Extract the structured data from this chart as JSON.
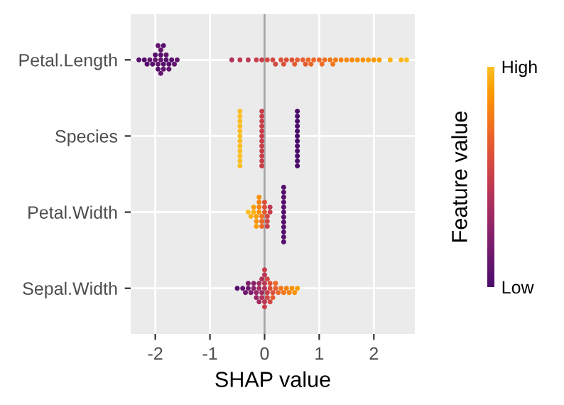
{
  "chart_data": {
    "type": "scatter",
    "orientation": "horizontal",
    "xlabel": "SHAP value",
    "clabel": "Feature value",
    "categories": [
      "Petal.Length",
      "Species",
      "Petal.Width",
      "Sepal.Width"
    ],
    "xlim": [
      -2.45,
      2.75
    ],
    "xticks": [
      {
        "value": -2,
        "label": "-2"
      },
      {
        "value": -1,
        "label": "-1"
      },
      0,
      1,
      2
    ],
    "grid": true,
    "marker": "circle",
    "legend": false,
    "clim": [
      0,
      1
    ],
    "cticks": [
      {
        "value": 0,
        "label": "Low"
      },
      {
        "value": 1,
        "label": "High"
      }
    ],
    "ref_lines": [
      {
        "axis": "x",
        "value": 0,
        "color": "#a6a6a6"
      }
    ],
    "series": [
      {
        "x": [
          "Petal.Length",
          "Petal.Length",
          "Petal.Length",
          "Petal.Length",
          "Petal.Length",
          "Petal.Length",
          "Petal.Length",
          "Petal.Length",
          "Petal.Length",
          "Petal.Length",
          "Petal.Length",
          "Petal.Length",
          "Petal.Length",
          "Petal.Length",
          "Petal.Length",
          "Petal.Length",
          "Petal.Length",
          "Petal.Length",
          "Petal.Length",
          "Petal.Length",
          "Petal.Length",
          "Petal.Length",
          "Petal.Length",
          "Petal.Length",
          "Petal.Length",
          "Petal.Length",
          "Petal.Length",
          "Petal.Length",
          "Petal.Length",
          "Petal.Length",
          "Petal.Length",
          "Petal.Length",
          "Petal.Length",
          "Petal.Length",
          "Petal.Length",
          "Petal.Length",
          "Petal.Length",
          "Petal.Length",
          "Petal.Length",
          "Petal.Length",
          "Petal.Length",
          "Petal.Length",
          "Petal.Length",
          "Petal.Length",
          "Petal.Length",
          "Petal.Length",
          "Petal.Length",
          "Petal.Length",
          "Petal.Length",
          "Petal.Length",
          "Petal.Length",
          "Petal.Length",
          "Petal.Length",
          "Petal.Length",
          "Petal.Length",
          "Petal.Length",
          "Petal.Length",
          "Petal.Length",
          "Petal.Length",
          "Petal.Length",
          "Species",
          "Species",
          "Species",
          "Species",
          "Species",
          "Species",
          "Species",
          "Species",
          "Species",
          "Species",
          "Species",
          "Species",
          "Species",
          "Species",
          "Species",
          "Species",
          "Species",
          "Species",
          "Species",
          "Species",
          "Species",
          "Species",
          "Species",
          "Species",
          "Species",
          "Species",
          "Species",
          "Species",
          "Species",
          "Species",
          "Species",
          "Species",
          "Species",
          "Species",
          "Species",
          "Species",
          "Petal.Width",
          "Petal.Width",
          "Petal.Width",
          "Petal.Width",
          "Petal.Width",
          "Petal.Width",
          "Petal.Width",
          "Petal.Width",
          "Petal.Width",
          "Petal.Width",
          "Petal.Width",
          "Petal.Width",
          "Petal.Width",
          "Petal.Width",
          "Petal.Width",
          "Petal.Width",
          "Petal.Width",
          "Petal.Width",
          "Petal.Width",
          "Petal.Width",
          "Petal.Width",
          "Petal.Width",
          "Petal.Width",
          "Petal.Width",
          "Petal.Width",
          "Petal.Width",
          "Petal.Width",
          "Petal.Width",
          "Petal.Width",
          "Petal.Width",
          "Petal.Width",
          "Petal.Width",
          "Petal.Width",
          "Petal.Width",
          "Sepal.Width",
          "Sepal.Width",
          "Sepal.Width",
          "Sepal.Width",
          "Sepal.Width",
          "Sepal.Width",
          "Sepal.Width",
          "Sepal.Width",
          "Sepal.Width",
          "Sepal.Width",
          "Sepal.Width",
          "Sepal.Width",
          "Sepal.Width",
          "Sepal.Width",
          "Sepal.Width",
          "Sepal.Width",
          "Sepal.Width",
          "Sepal.Width",
          "Sepal.Width",
          "Sepal.Width",
          "Sepal.Width",
          "Sepal.Width",
          "Sepal.Width",
          "Sepal.Width",
          "Sepal.Width",
          "Sepal.Width",
          "Sepal.Width",
          "Sepal.Width",
          "Sepal.Width",
          "Sepal.Width",
          "Sepal.Width",
          "Sepal.Width",
          "Sepal.Width",
          "Sepal.Width",
          "Sepal.Width",
          "Sepal.Width",
          "Sepal.Width",
          "Sepal.Width",
          "Sepal.Width",
          "Sepal.Width"
        ],
        "values": [
          -2.3,
          -2.2,
          -2.1,
          -2.05,
          -2.0,
          -2.0,
          -1.95,
          -1.95,
          -1.9,
          -1.9,
          -1.9,
          -1.85,
          -1.85,
          -1.8,
          -1.8,
          -1.75,
          -1.75,
          -1.7,
          -1.65,
          -1.6,
          -2.15,
          -1.9,
          -1.85,
          -1.95,
          -0.6,
          -0.45,
          -0.3,
          -0.15,
          -0.05,
          0.05,
          0.15,
          0.2,
          0.3,
          0.35,
          0.4,
          0.5,
          0.55,
          0.6,
          0.7,
          0.75,
          0.8,
          0.85,
          0.9,
          1.0,
          1.05,
          1.1,
          1.2,
          1.25,
          1.3,
          1.4,
          1.5,
          1.6,
          1.7,
          1.8,
          1.9,
          2.0,
          2.1,
          2.3,
          2.5,
          2.6,
          -0.45,
          -0.45,
          -0.45,
          -0.45,
          -0.45,
          -0.45,
          -0.45,
          -0.45,
          -0.45,
          -0.45,
          -0.45,
          -0.45,
          -0.05,
          -0.05,
          -0.05,
          -0.05,
          -0.05,
          -0.05,
          -0.05,
          -0.05,
          -0.05,
          -0.05,
          -0.05,
          -0.05,
          0.6,
          0.6,
          0.6,
          0.6,
          0.6,
          0.6,
          0.6,
          0.6,
          0.6,
          0.6,
          0.6,
          0.6,
          0.35,
          0.35,
          0.35,
          0.35,
          0.35,
          0.35,
          0.35,
          0.35,
          0.35,
          0.35,
          0.35,
          0.35,
          -0.3,
          -0.25,
          -0.2,
          -0.2,
          -0.15,
          -0.15,
          -0.1,
          -0.1,
          -0.1,
          -0.05,
          -0.05,
          -0.05,
          0.0,
          0.0,
          0.0,
          0.05,
          0.05,
          0.05,
          0.1,
          0.1,
          -0.15,
          -0.1,
          -0.5,
          -0.4,
          -0.35,
          -0.3,
          -0.3,
          -0.25,
          -0.2,
          -0.2,
          -0.15,
          -0.15,
          -0.1,
          -0.1,
          -0.05,
          -0.05,
          -0.05,
          0.0,
          0.0,
          0.0,
          0.0,
          0.0,
          0.0,
          0.05,
          0.05,
          0.05,
          0.1,
          0.1,
          0.15,
          0.15,
          0.2,
          0.2,
          0.25,
          0.3,
          0.35,
          0.4,
          0.45,
          0.5,
          0.55,
          0.6,
          -0.1,
          0.1
        ],
        "cvalues": [
          0.05,
          0.05,
          0.1,
          0.05,
          0.1,
          0.05,
          0.1,
          0.05,
          0.1,
          0.05,
          0.1,
          0.05,
          0.1,
          0.05,
          0.1,
          0.05,
          0.1,
          0.05,
          0.1,
          0.1,
          0.05,
          0.1,
          0.05,
          0.1,
          0.4,
          0.45,
          0.45,
          0.5,
          0.5,
          0.55,
          0.55,
          0.55,
          0.6,
          0.6,
          0.6,
          0.6,
          0.65,
          0.65,
          0.65,
          0.65,
          0.7,
          0.7,
          0.7,
          0.7,
          0.72,
          0.72,
          0.75,
          0.75,
          0.78,
          0.8,
          0.82,
          0.82,
          0.85,
          0.85,
          0.88,
          0.88,
          0.9,
          0.95,
          0.97,
          1.0,
          1,
          1,
          1,
          1,
          1,
          1,
          1,
          1,
          1,
          1,
          1,
          1,
          0.5,
          0.5,
          0.5,
          0.5,
          0.5,
          0.5,
          0.5,
          0.5,
          0.5,
          0.5,
          0.5,
          0.5,
          0,
          0,
          0,
          0,
          0,
          0,
          0,
          0,
          0,
          0,
          0,
          0,
          0.05,
          0.05,
          0.05,
          0.05,
          0.05,
          0.05,
          0.05,
          0.05,
          0.05,
          0.05,
          0.05,
          0.05,
          1.0,
          0.95,
          0.95,
          0.9,
          0.9,
          0.85,
          0.85,
          0.8,
          0.8,
          0.75,
          0.7,
          0.7,
          0.65,
          0.6,
          0.6,
          0.55,
          0.55,
          0.5,
          0.5,
          0.45,
          0.9,
          0.85,
          0.05,
          0.1,
          0.15,
          0.15,
          0.2,
          0.2,
          0.25,
          0.25,
          0.3,
          0.3,
          0.35,
          0.35,
          0.35,
          0.4,
          0.4,
          0.4,
          0.45,
          0.45,
          0.45,
          0.5,
          0.5,
          0.5,
          0.55,
          0.55,
          0.6,
          0.6,
          0.6,
          0.65,
          0.65,
          0.7,
          0.7,
          0.75,
          0.75,
          0.8,
          0.8,
          0.85,
          0.85,
          0.9,
          0.35,
          0.55
        ]
      }
    ]
  }
}
